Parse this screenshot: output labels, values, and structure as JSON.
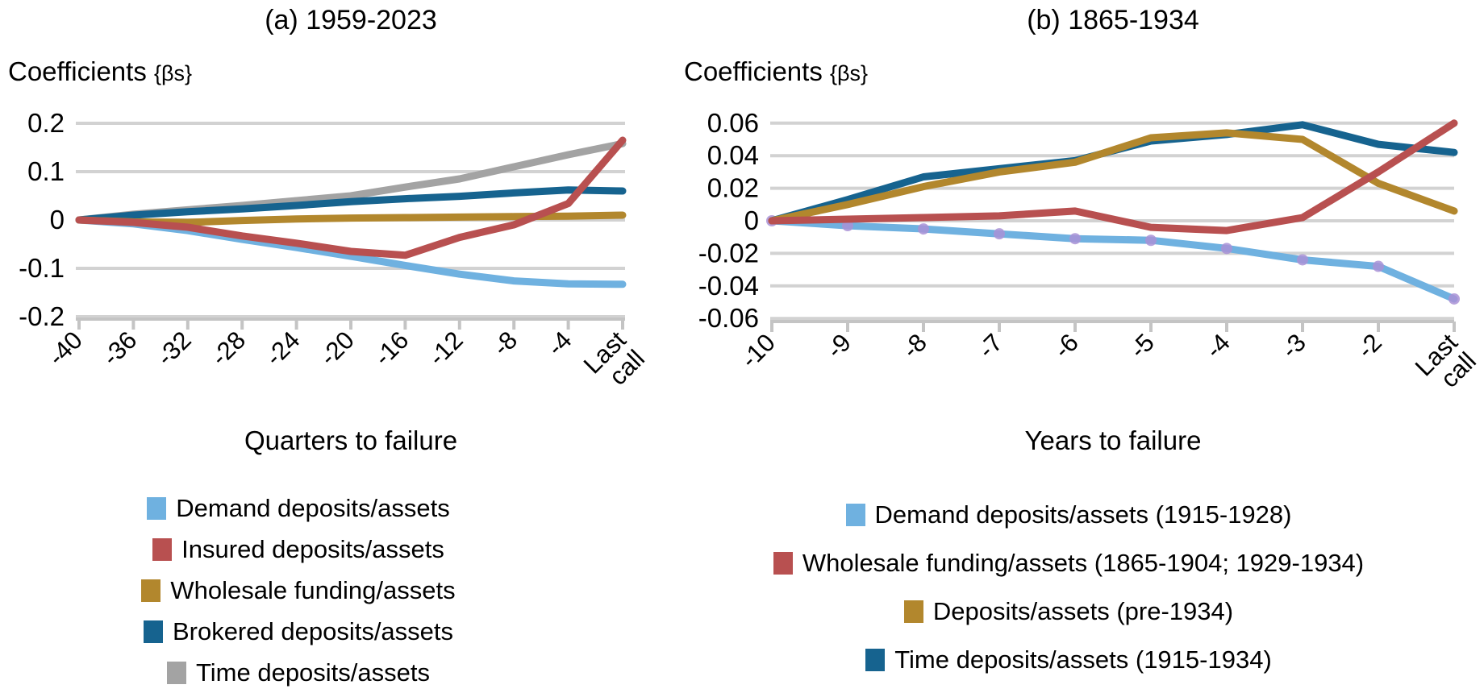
{
  "figure": {
    "background": "#ffffff",
    "grid_color": "#d2d2d2",
    "axis_color": "#c4c4c4",
    "text_color": "#000000"
  },
  "chart_data": [
    {
      "id": "a",
      "type": "line",
      "title": "(a) 1959-2023",
      "y_axis_label_main": "Coefficients",
      "y_axis_label_beta": "{βs}",
      "xlabel": "Quarters to failure",
      "categories": [
        "-40",
        "-36",
        "-32",
        "-28",
        "-24",
        "-20",
        "-16",
        "-12",
        "-8",
        "-4",
        "Last call"
      ],
      "y_ticks": [
        "0.2",
        "0.1",
        "0",
        "-0.1",
        "-0.2"
      ],
      "ylim": [
        -0.2,
        0.2
      ],
      "grid": "horizontal",
      "legend_position": "below",
      "series": [
        {
          "name": "Demand deposits/assets",
          "color": "#6fb1e0",
          "values": [
            0,
            -0.008,
            -0.022,
            -0.04,
            -0.057,
            -0.075,
            -0.094,
            -0.112,
            -0.126,
            -0.132,
            -0.133
          ]
        },
        {
          "name": "Insured deposits/assets",
          "color": "#b85050",
          "values": [
            0,
            -0.005,
            -0.015,
            -0.033,
            -0.048,
            -0.065,
            -0.073,
            -0.036,
            -0.01,
            0.034,
            0.165
          ]
        },
        {
          "name": "Wholesale funding/assets",
          "color": "#b2872d",
          "values": [
            0,
            -0.004,
            -0.005,
            -0.001,
            0.002,
            0.004,
            0.005,
            0.006,
            0.007,
            0.008,
            0.01
          ]
        },
        {
          "name": "Brokered deposits/assets",
          "color": "#16638f",
          "values": [
            0,
            0.01,
            0.017,
            0.023,
            0.03,
            0.038,
            0.044,
            0.049,
            0.056,
            0.062,
            0.06
          ]
        },
        {
          "name": "Time deposits/assets",
          "color": "#a3a3a3",
          "values": [
            0,
            0.012,
            0.021,
            0.03,
            0.04,
            0.05,
            0.068,
            0.085,
            0.11,
            0.135,
            0.158
          ]
        }
      ]
    },
    {
      "id": "b",
      "type": "line",
      "title": "(b) 1865-1934",
      "y_axis_label_main": "Coefficients",
      "y_axis_label_beta": "{βs}",
      "xlabel": "Years to failure",
      "categories": [
        "-10",
        "-9",
        "-8",
        "-7",
        "-6",
        "-5",
        "-4",
        "-3",
        "-2",
        "Last call"
      ],
      "y_ticks": [
        "0.06",
        "0.04",
        "0.02",
        "0",
        "-0.02",
        "-0.04",
        "-0.06"
      ],
      "ylim": [
        -0.06,
        0.06
      ],
      "grid": "horizontal",
      "legend_position": "below",
      "series": [
        {
          "name": "Demand deposits/assets (1915-1928)",
          "color": "#6fb1e0",
          "marker": {
            "shape": "circle",
            "color": "#a992d6"
          },
          "values": [
            0,
            -0.003,
            -0.005,
            -0.008,
            -0.011,
            -0.012,
            -0.017,
            -0.024,
            -0.028,
            -0.048
          ]
        },
        {
          "name": "Wholesale funding/assets (1865-1904; 1929-1934)",
          "color": "#b85050",
          "values": [
            0,
            0.001,
            0.002,
            0.003,
            0.006,
            -0.004,
            -0.006,
            0.002,
            0.03,
            0.06
          ]
        },
        {
          "name": "Deposits/assets (pre-1934)",
          "color": "#b2872d",
          "values": [
            0,
            0.01,
            0.021,
            0.03,
            0.036,
            0.051,
            0.054,
            0.05,
            0.023,
            0.006
          ]
        },
        {
          "name": "Time deposits/assets (1915-1934)",
          "color": "#16638f",
          "values": [
            0,
            0.013,
            0.027,
            0.032,
            0.037,
            0.049,
            0.053,
            0.059,
            0.047,
            0.042
          ]
        }
      ]
    }
  ]
}
